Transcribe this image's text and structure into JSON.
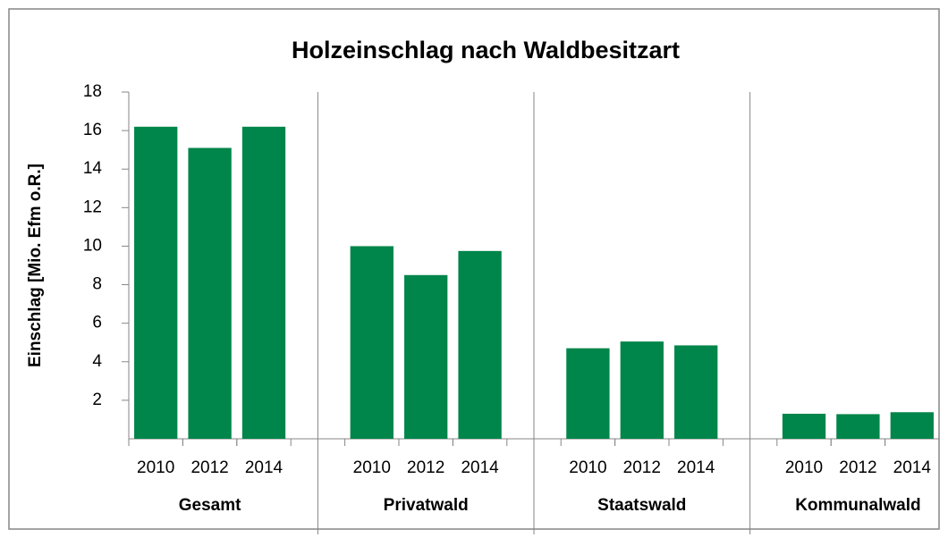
{
  "chart_data": {
    "type": "bar",
    "title": "Holzeinschlag nach Waldbesitzart",
    "ylabel": "Einschlag [Mio. Efm o.R.]",
    "groups": [
      {
        "name": "Gesamt",
        "categories": [
          "2010",
          "2012",
          "2014"
        ],
        "values": [
          16.2,
          15.1,
          16.2
        ]
      },
      {
        "name": "Privatwald",
        "categories": [
          "2010",
          "2012",
          "2014"
        ],
        "values": [
          10.0,
          8.5,
          9.75
        ]
      },
      {
        "name": "Staatswald",
        "categories": [
          "2010",
          "2012",
          "2014"
        ],
        "values": [
          4.7,
          5.05,
          4.85
        ]
      },
      {
        "name": "Kommunalwald",
        "categories": [
          "2010",
          "2012",
          "2014"
        ],
        "values": [
          1.3,
          1.28,
          1.38
        ]
      }
    ],
    "color": "#00854a",
    "ylim": [
      0,
      18
    ],
    "yticks": [
      2,
      4,
      6,
      8,
      10,
      12,
      14,
      16,
      18
    ],
    "grid": false
  }
}
